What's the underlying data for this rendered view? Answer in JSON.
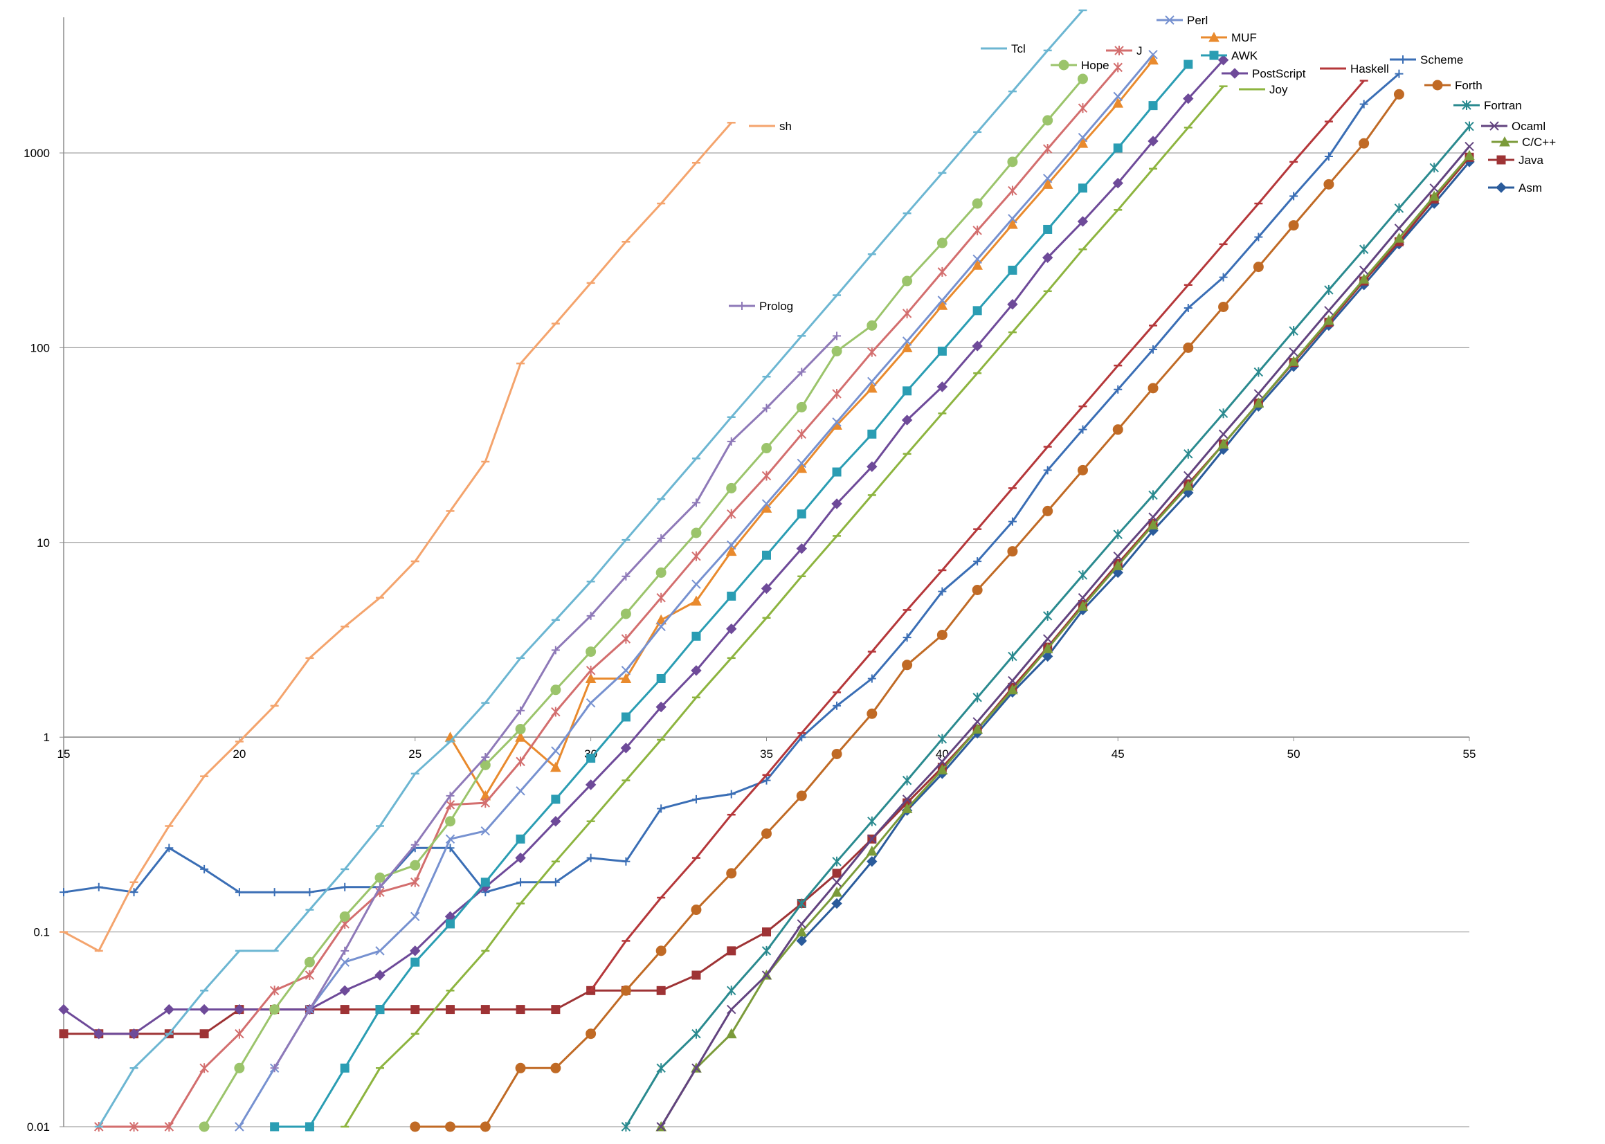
{
  "chart_data": {
    "type": "line",
    "title": "",
    "xlabel": "",
    "ylabel": "",
    "xlim": [
      15,
      55
    ],
    "ylim": [
      0.01,
      5000
    ],
    "yscale": "log",
    "grid": "horizontal major gridlines",
    "legend": "inline labels near line ends",
    "x_ticks": [
      "15",
      "20",
      "25",
      "30",
      "35",
      "40",
      "45",
      "50",
      "55"
    ],
    "y_ticks": [
      "0.01",
      "0.1",
      "1",
      "10",
      "100",
      "1000"
    ],
    "series": [
      {
        "name": "Asm",
        "color": "#2a5b9b",
        "marker": "diamond",
        "x": [
          36,
          37,
          38,
          39,
          40,
          41,
          42,
          43,
          44,
          45,
          46,
          47,
          48,
          49,
          50,
          51,
          52,
          53,
          54,
          55
        ],
        "y": [
          0.09,
          0.14,
          0.23,
          0.42,
          0.65,
          1.05,
          1.7,
          2.6,
          4.5,
          7,
          11.5,
          18,
          30,
          50,
          80,
          130,
          210,
          340,
          550,
          900
        ]
      },
      {
        "name": "Java",
        "color": "#9e3335",
        "marker": "square",
        "x": [
          15,
          16,
          17,
          18,
          19,
          20,
          21,
          22,
          23,
          24,
          25,
          26,
          27,
          28,
          29,
          30,
          31,
          32,
          33,
          34,
          35,
          36,
          37,
          38,
          39,
          40,
          41,
          42,
          43,
          44,
          45,
          46,
          47,
          48,
          49,
          50,
          51,
          52,
          53,
          54,
          55
        ],
        "y": [
          0.03,
          0.03,
          0.03,
          0.03,
          0.03,
          0.04,
          0.04,
          0.04,
          0.04,
          0.04,
          0.04,
          0.04,
          0.04,
          0.04,
          0.04,
          0.05,
          0.05,
          0.05,
          0.06,
          0.08,
          0.1,
          0.14,
          0.2,
          0.3,
          0.46,
          0.7,
          1.1,
          1.8,
          2.9,
          4.8,
          7.8,
          12.5,
          20,
          32,
          52,
          84,
          135,
          220,
          350,
          580,
          950
        ]
      },
      {
        "name": "C/C++",
        "color": "#7b9b3a",
        "marker": "triangle",
        "x": [
          32,
          33,
          34,
          35,
          36,
          37,
          38,
          39,
          40,
          41,
          42,
          43,
          44,
          45,
          46,
          47,
          48,
          49,
          50,
          51,
          52,
          53,
          54,
          55
        ],
        "y": [
          0.01,
          0.02,
          0.03,
          0.06,
          0.1,
          0.16,
          0.26,
          0.43,
          0.68,
          1.1,
          1.75,
          2.85,
          4.7,
          7.6,
          12.3,
          19.5,
          32,
          52,
          85,
          138,
          225,
          365,
          600,
          970
        ]
      },
      {
        "name": "Ocaml",
        "color": "#62437f",
        "marker": "x",
        "x": [
          32,
          33,
          34,
          35,
          36,
          37,
          38,
          39,
          40,
          41,
          42,
          43,
          44,
          45,
          46,
          47,
          48,
          49,
          50,
          51,
          52,
          53,
          54,
          55
        ],
        "y": [
          0.01,
          0.02,
          0.04,
          0.06,
          0.11,
          0.18,
          0.3,
          0.48,
          0.75,
          1.2,
          1.95,
          3.2,
          5.2,
          8.5,
          13.5,
          22,
          36,
          58,
          95,
          155,
          250,
          410,
          660,
          1080
        ]
      },
      {
        "name": "Fortran",
        "color": "#2a8a8f",
        "marker": "star",
        "x": [
          31,
          32,
          33,
          34,
          35,
          36,
          37,
          38,
          39,
          40,
          41,
          42,
          43,
          44,
          45,
          46,
          47,
          48,
          49,
          50,
          51,
          52,
          53,
          54,
          55
        ],
        "y": [
          0.01,
          0.02,
          0.03,
          0.05,
          0.08,
          0.14,
          0.23,
          0.37,
          0.6,
          0.98,
          1.6,
          2.6,
          4.2,
          6.8,
          11,
          17.5,
          28.5,
          46,
          75,
          122,
          198,
          320,
          520,
          840,
          1370
        ]
      },
      {
        "name": "Forth",
        "color": "#c06a25",
        "marker": "circle",
        "x": [
          25,
          26,
          27,
          28,
          29,
          30,
          31,
          32,
          33,
          34,
          35,
          36,
          37,
          38,
          39,
          40,
          41,
          42,
          43,
          44,
          45,
          46,
          47,
          48,
          49,
          50,
          51,
          52,
          53
        ],
        "y": [
          0.01,
          0.01,
          0.01,
          0.02,
          0.02,
          0.03,
          0.05,
          0.08,
          0.13,
          0.2,
          0.32,
          0.5,
          0.82,
          1.32,
          2.35,
          3.35,
          5.7,
          9,
          14.5,
          23.5,
          38,
          62,
          100,
          162,
          260,
          425,
          690,
          1120,
          2000
        ]
      },
      {
        "name": "Scheme",
        "color": "#3a6eb5",
        "marker": "plus",
        "x": [
          15,
          16,
          17,
          18,
          19,
          20,
          21,
          22,
          23,
          24,
          25,
          26,
          27,
          28,
          29,
          30,
          31,
          32,
          33,
          34,
          35,
          36,
          37,
          38,
          39,
          40,
          41,
          42,
          43,
          44,
          45,
          46,
          47,
          48,
          49,
          50,
          51,
          52,
          53
        ],
        "y": [
          0.16,
          0.17,
          0.16,
          0.27,
          0.21,
          0.16,
          0.16,
          0.16,
          0.17,
          0.17,
          0.27,
          0.27,
          0.16,
          0.18,
          0.18,
          0.24,
          0.23,
          0.43,
          0.48,
          0.51,
          0.6,
          1,
          1.45,
          2,
          3.25,
          5.6,
          8,
          12.8,
          23.5,
          38,
          61,
          98,
          160,
          230,
          370,
          600,
          960,
          1780,
          2550
        ]
      },
      {
        "name": "Haskell",
        "color": "#b5373a",
        "marker": "dash",
        "x": [
          30,
          31,
          32,
          33,
          34,
          35,
          36,
          37,
          38,
          39,
          40,
          41,
          42,
          43,
          44,
          45,
          46,
          47,
          48,
          49,
          50,
          51,
          52
        ],
        "y": [
          0.05,
          0.09,
          0.15,
          0.24,
          0.4,
          0.64,
          1.05,
          1.7,
          2.75,
          4.5,
          7.2,
          11.7,
          19,
          31,
          50,
          81,
          130,
          210,
          340,
          550,
          900,
          1450,
          2350
        ]
      },
      {
        "name": "Joy",
        "color": "#8db43f",
        "marker": "dash",
        "x": [
          23,
          24,
          25,
          26,
          27,
          28,
          29,
          30,
          31,
          32,
          33,
          34,
          35,
          36,
          37,
          38,
          39,
          40,
          41,
          42,
          43,
          44,
          45,
          46,
          47,
          48
        ],
        "y": [
          0.01,
          0.02,
          0.03,
          0.05,
          0.08,
          0.14,
          0.23,
          0.37,
          0.6,
          0.97,
          1.6,
          2.55,
          4.1,
          6.7,
          10.8,
          17.5,
          28.5,
          46,
          74,
          120,
          195,
          320,
          510,
          830,
          1350,
          2200
        ]
      },
      {
        "name": "PostScript",
        "color": "#6e4a99",
        "marker": "diamond",
        "x": [
          15,
          16,
          17,
          18,
          19,
          20,
          21,
          22,
          23,
          24,
          25,
          26,
          27,
          28,
          29,
          30,
          31,
          32,
          33,
          34,
          35,
          36,
          37,
          38,
          39,
          40,
          41,
          42,
          43,
          44,
          45,
          46,
          47,
          48
        ],
        "y": [
          0.04,
          0.03,
          0.03,
          0.04,
          0.04,
          0.04,
          0.04,
          0.04,
          0.05,
          0.06,
          0.08,
          0.12,
          0.17,
          0.24,
          0.37,
          0.57,
          0.88,
          1.43,
          2.2,
          3.6,
          5.8,
          9.3,
          15.8,
          24.5,
          42.5,
          63,
          102,
          167,
          290,
          445,
          700,
          1150,
          1900,
          3000
        ]
      },
      {
        "name": "AWK",
        "color": "#2a9db3",
        "marker": "square",
        "x": [
          21,
          22,
          23,
          24,
          25,
          26,
          27,
          28,
          29,
          30,
          31,
          32,
          33,
          34,
          35,
          36,
          37,
          38,
          39,
          40,
          41,
          42,
          43,
          44,
          45,
          46,
          47
        ],
        "y": [
          0.01,
          0.01,
          0.02,
          0.04,
          0.07,
          0.11,
          0.18,
          0.3,
          0.48,
          0.78,
          1.27,
          2,
          3.3,
          5.3,
          8.6,
          14,
          23,
          36,
          60,
          96,
          155,
          250,
          405,
          660,
          1060,
          1750,
          2850
        ]
      },
      {
        "name": "MUF",
        "color": "#e98a2d",
        "marker": "triangle",
        "x": [
          26,
          27,
          28,
          29,
          30,
          31,
          32,
          33,
          34,
          35,
          36,
          37,
          38,
          39,
          40,
          41,
          42,
          43,
          44,
          45,
          46
        ],
        "y": [
          1,
          0.5,
          1,
          0.7,
          2,
          2,
          4,
          5,
          9,
          15,
          24,
          40,
          62,
          100,
          165,
          265,
          430,
          690,
          1120,
          1800,
          3000
        ]
      },
      {
        "name": "Perl",
        "color": "#7691d0",
        "marker": "x",
        "x": [
          20,
          21,
          22,
          23,
          24,
          25,
          26,
          27,
          28,
          29,
          30,
          31,
          32,
          33,
          34,
          35,
          36,
          37,
          38,
          39,
          40,
          41,
          42,
          43,
          44,
          45,
          46
        ],
        "y": [
          0.01,
          0.02,
          0.04,
          0.07,
          0.08,
          0.12,
          0.3,
          0.33,
          0.53,
          0.85,
          1.5,
          2.2,
          3.7,
          6.1,
          9.7,
          15.8,
          25.5,
          41.5,
          67,
          108,
          175,
          285,
          460,
          740,
          1200,
          1950,
          3200
        ]
      },
      {
        "name": "J",
        "color": "#d36e6e",
        "marker": "star",
        "x": [
          16,
          17,
          18,
          19,
          20,
          21,
          22,
          23,
          24,
          25,
          26,
          27,
          28,
          29,
          30,
          31,
          32,
          33,
          34,
          35,
          36,
          37,
          38,
          39,
          40,
          41,
          42,
          43,
          44,
          45
        ],
        "y": [
          0.01,
          0.01,
          0.01,
          0.02,
          0.03,
          0.05,
          0.06,
          0.11,
          0.16,
          0.18,
          0.45,
          0.46,
          0.75,
          1.35,
          2.2,
          3.2,
          5.2,
          8.5,
          14,
          22,
          36,
          58,
          95,
          150,
          245,
          400,
          640,
          1050,
          1700,
          2750
        ]
      },
      {
        "name": "Hope",
        "color": "#9bc46b",
        "marker": "circle",
        "x": [
          19,
          20,
          21,
          22,
          23,
          24,
          25,
          26,
          27,
          28,
          29,
          30,
          31,
          32,
          33,
          34,
          35,
          36,
          37,
          38,
          39,
          40,
          41,
          42,
          43,
          44
        ],
        "y": [
          0.01,
          0.02,
          0.04,
          0.07,
          0.12,
          0.19,
          0.22,
          0.37,
          0.72,
          1.1,
          1.75,
          2.75,
          4.3,
          7,
          11.2,
          19,
          30.5,
          49.5,
          96,
          130,
          220,
          345,
          550,
          900,
          1470,
          2400
        ]
      },
      {
        "name": "Tcl",
        "color": "#6cb6d2",
        "marker": "dash",
        "x": [
          16,
          17,
          18,
          19,
          20,
          21,
          22,
          23,
          24,
          25,
          26,
          27,
          28,
          29,
          30,
          31,
          32,
          33,
          34,
          35,
          36,
          37,
          38,
          39,
          40,
          41,
          42,
          43,
          44
        ],
        "y": [
          0.01,
          0.02,
          0.03,
          0.05,
          0.08,
          0.08,
          0.13,
          0.21,
          0.35,
          0.65,
          0.95,
          1.5,
          2.55,
          4,
          6.3,
          10.3,
          16.7,
          27,
          44,
          71,
          115,
          186,
          302,
          490,
          790,
          1280,
          2070,
          3360,
          5400
        ]
      },
      {
        "name": "Prolog",
        "color": "#8e79b8",
        "marker": "plus",
        "x": [
          21,
          22,
          23,
          24,
          25,
          26,
          27,
          28,
          29,
          30,
          31,
          32,
          33,
          34,
          35,
          36,
          37
        ],
        "y": [
          0.02,
          0.04,
          0.08,
          0.17,
          0.28,
          0.5,
          0.79,
          1.37,
          2.8,
          4.2,
          6.7,
          10.5,
          16,
          33,
          49,
          75,
          115
        ]
      },
      {
        "name": "sh",
        "color": "#f4a46d",
        "marker": "dash",
        "x": [
          15,
          16,
          17,
          18,
          19,
          20,
          21,
          22,
          23,
          24,
          25,
          26,
          27,
          28,
          29,
          30,
          31,
          32,
          33,
          34
        ],
        "y": [
          0.1,
          0.08,
          0.18,
          0.35,
          0.63,
          0.95,
          1.45,
          2.55,
          3.7,
          5.2,
          8,
          14.5,
          26,
          83,
          133,
          215,
          350,
          550,
          890,
          1430
        ]
      }
    ]
  }
}
